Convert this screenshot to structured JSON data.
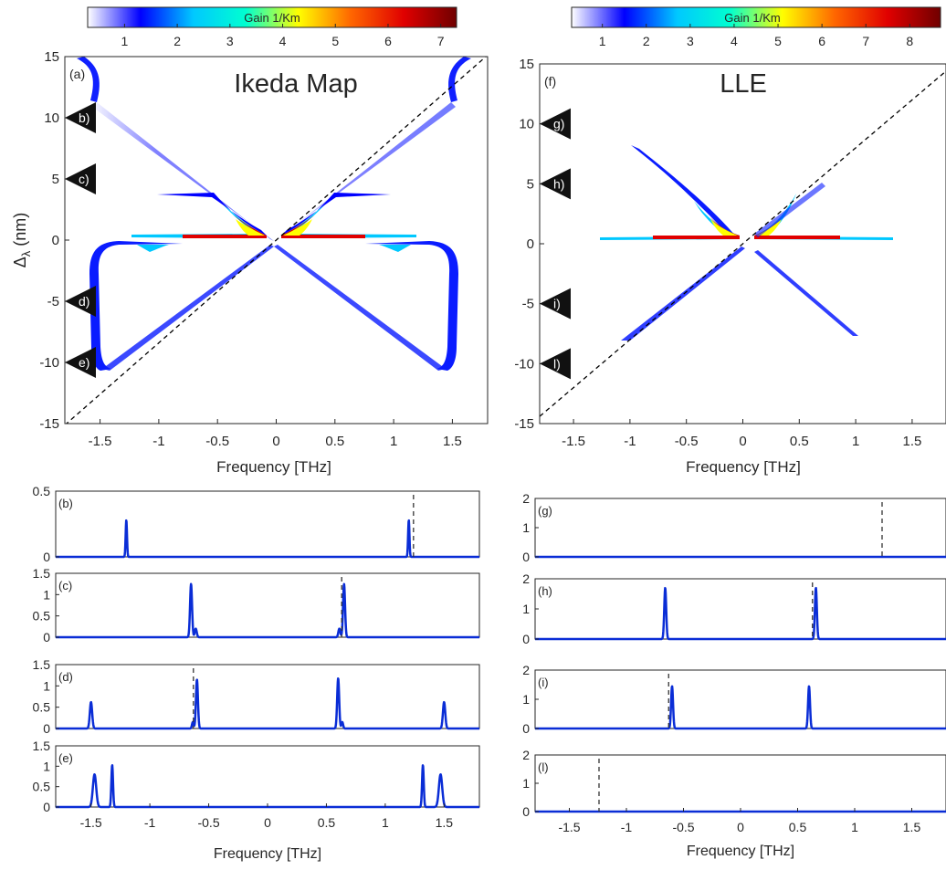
{
  "figure": {
    "colorbar_left": {
      "label": "Gain 1/Km",
      "ticks": [
        1,
        2,
        3,
        4,
        5,
        6,
        7
      ],
      "min": 0.3,
      "max": 7.3
    },
    "colorbar_right": {
      "label": "Gain 1/Km",
      "ticks": [
        1,
        2,
        3,
        4,
        5,
        6,
        7,
        8
      ],
      "min": 0.3,
      "max": 8.7
    },
    "colormap": [
      "#ffffff",
      "#0000ff",
      "#00c8ff",
      "#00ffd0",
      "#ffff00",
      "#ff6600",
      "#e00000",
      "#700000"
    ],
    "line_color": "#0a2dd6"
  },
  "chart_data": [
    {
      "id": "a",
      "type": "heatmap",
      "panel_label": "(a)",
      "title": "Ikeda Map",
      "xlabel": "Frequency [THz]",
      "ylabel": "Δ_λ (nm)",
      "xlim": [
        -1.8,
        1.8
      ],
      "ylim": [
        -15,
        15
      ],
      "xticks": [
        -1.5,
        -1,
        -0.5,
        0,
        0.5,
        1,
        1.5
      ],
      "yticks": [
        -15,
        -10,
        -5,
        0,
        5,
        10,
        15
      ],
      "markers": [
        {
          "label": "b)",
          "y": 10
        },
        {
          "label": "c)",
          "y": 5
        },
        {
          "label": "d)",
          "y": -5
        },
        {
          "label": "e)",
          "y": -10
        }
      ],
      "dashed_line": {
        "slope_nm_per_thz": 8.4
      }
    },
    {
      "id": "f",
      "type": "heatmap",
      "panel_label": "(f)",
      "title": "LLE",
      "xlabel": "Frequency [THz]",
      "ylabel": "",
      "xlim": [
        -1.8,
        1.8
      ],
      "ylim": [
        -15,
        15
      ],
      "xticks": [
        -1.5,
        -1,
        -0.5,
        0,
        0.5,
        1,
        1.5
      ],
      "yticks": [
        -15,
        -10,
        -5,
        0,
        5,
        10,
        15
      ],
      "markers": [
        {
          "label": "g)",
          "y": 10
        },
        {
          "label": "h)",
          "y": 5
        },
        {
          "label": "i)",
          "y": -5
        },
        {
          "label": "l)",
          "y": -10
        }
      ],
      "dashed_line": {
        "slope_nm_per_thz": 8.0
      }
    },
    {
      "id": "b",
      "type": "line",
      "panel_label": "(b)",
      "xlim": [
        -1.8,
        1.8
      ],
      "ylim": [
        0,
        0.5
      ],
      "yticks": [
        0,
        0.5
      ],
      "peaks": [
        {
          "x": -1.2,
          "h": 0.28,
          "w": 0.008
        },
        {
          "x": 1.2,
          "h": 0.28,
          "w": 0.008
        }
      ],
      "dashed_x": 1.24
    },
    {
      "id": "c",
      "type": "line",
      "panel_label": "(c)",
      "xlim": [
        -1.8,
        1.8
      ],
      "ylim": [
        0,
        1.5
      ],
      "yticks": [
        0,
        0.5,
        1,
        1.5
      ],
      "peaks": [
        {
          "x": -0.65,
          "h": 1.25,
          "w": 0.012
        },
        {
          "x": -0.61,
          "h": 0.2,
          "w": 0.012
        },
        {
          "x": 0.65,
          "h": 1.25,
          "w": 0.012
        },
        {
          "x": 0.61,
          "h": 0.2,
          "w": 0.012
        }
      ],
      "dashed_x": 0.63
    },
    {
      "id": "d",
      "type": "line",
      "panel_label": "(d)",
      "xlim": [
        -1.8,
        1.8
      ],
      "ylim": [
        0,
        1.5
      ],
      "yticks": [
        0,
        0.5,
        1,
        1.5
      ],
      "peaks": [
        {
          "x": -1.5,
          "h": 0.62,
          "w": 0.014
        },
        {
          "x": -0.6,
          "h": 1.15,
          "w": 0.012
        },
        {
          "x": -0.635,
          "h": 0.15,
          "w": 0.01
        },
        {
          "x": 0.6,
          "h": 1.18,
          "w": 0.012
        },
        {
          "x": 0.635,
          "h": 0.15,
          "w": 0.01
        },
        {
          "x": 1.5,
          "h": 0.62,
          "w": 0.014
        }
      ],
      "dashed_x": -0.63
    },
    {
      "id": "e",
      "type": "line",
      "panel_label": "(e)",
      "xlim": [
        -1.8,
        1.8
      ],
      "ylim": [
        0,
        1.5
      ],
      "yticks": [
        0,
        0.5,
        1,
        1.5
      ],
      "xticks": [
        -1.5,
        -1,
        -0.5,
        0,
        0.5,
        1,
        1.5
      ],
      "xlabel": "Frequency [THz]",
      "peaks": [
        {
          "x": -1.47,
          "h": 0.8,
          "w": 0.02
        },
        {
          "x": -1.32,
          "h": 1.03,
          "w": 0.01
        },
        {
          "x": 1.32,
          "h": 1.03,
          "w": 0.01
        },
        {
          "x": 1.47,
          "h": 0.8,
          "w": 0.02
        }
      ]
    },
    {
      "id": "g",
      "type": "line",
      "panel_label": "(g)",
      "xlim": [
        -1.8,
        1.8
      ],
      "ylim": [
        0,
        2
      ],
      "yticks": [
        0,
        1,
        2
      ],
      "peaks": [],
      "dashed_x": 1.24
    },
    {
      "id": "h",
      "type": "line",
      "panel_label": "(h)",
      "xlim": [
        -1.8,
        1.8
      ],
      "ylim": [
        0,
        2
      ],
      "yticks": [
        0,
        1,
        2
      ],
      "peaks": [
        {
          "x": -0.66,
          "h": 1.7,
          "w": 0.012
        },
        {
          "x": 0.66,
          "h": 1.7,
          "w": 0.012
        }
      ],
      "dashed_x": 0.63
    },
    {
      "id": "i",
      "type": "line",
      "panel_label": "(i)",
      "xlim": [
        -1.8,
        1.8
      ],
      "ylim": [
        0,
        2
      ],
      "yticks": [
        0,
        1,
        2
      ],
      "peaks": [
        {
          "x": -0.6,
          "h": 1.45,
          "w": 0.012
        },
        {
          "x": 0.6,
          "h": 1.45,
          "w": 0.012
        }
      ],
      "dashed_x": -0.63
    },
    {
      "id": "l",
      "type": "line",
      "panel_label": "(l)",
      "xlim": [
        -1.8,
        1.8
      ],
      "ylim": [
        0,
        2
      ],
      "yticks": [
        0,
        1,
        2
      ],
      "xticks": [
        -1.5,
        -1,
        -0.5,
        0,
        0.5,
        1,
        1.5
      ],
      "xlabel": "Frequency [THz]",
      "peaks": [],
      "dashed_x": -1.24
    }
  ]
}
